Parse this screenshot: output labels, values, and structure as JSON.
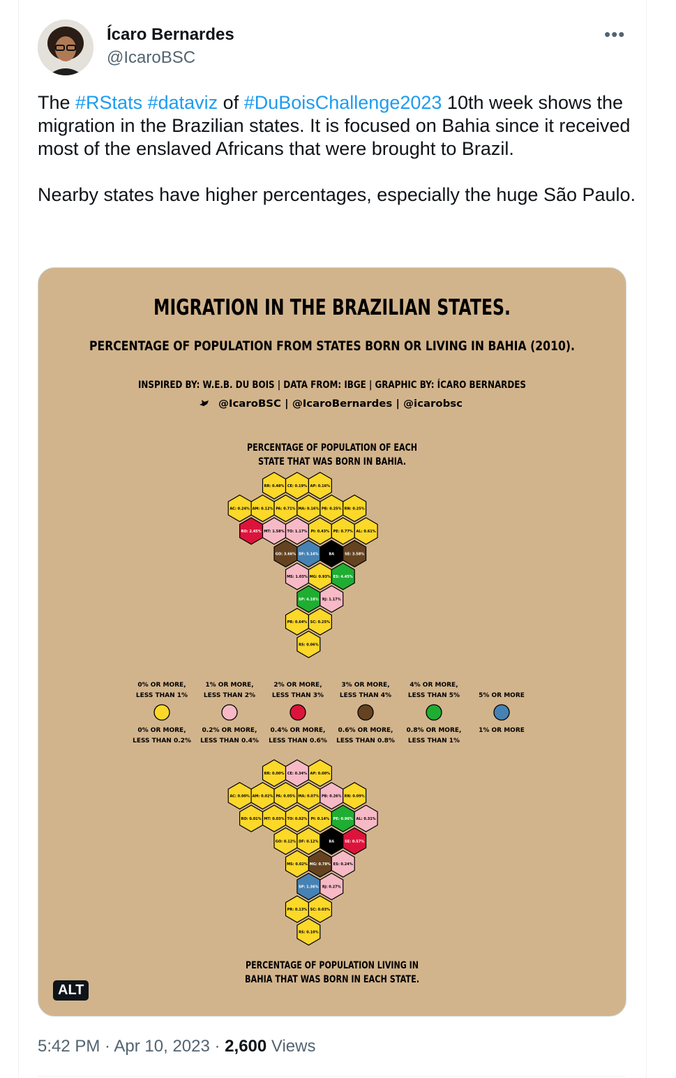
{
  "author": {
    "name": "Ícaro Bernardes",
    "handle": "@IcaroBSC"
  },
  "tweet": {
    "p1_a": "The ",
    "tag1": "#RStats",
    "tag2": "#dataviz",
    "p1_b": " of ",
    "tag3": "#DuBoisChallenge2023",
    "p1_c": " 10th week shows the migration in the Brazilian states. It is focused on Bahia since it received most of the enslaved Africans that were brought to Brazil.",
    "p2": "Nearby states have higher percentages, especially the huge São Paulo."
  },
  "infographic": {
    "title": "MIGRATION IN THE BRAZILIAN STATES.",
    "subtitle": "PERCENTAGE OF POPULATION FROM STATES BORN OR LIVING IN BAHIA (2010).",
    "credits": "INSPIRED BY: W.E.B. DU BOIS | DATA FROM: IBGE | GRAPHIC BY: ÍCARO BERNARDES",
    "social": "@IcaroBSC | @IcaroBernardes | @icarobsc",
    "map1_title_1": "PERCENTAGE OF POPULATION OF EACH",
    "map1_title_2": "STATE THAT WAS BORN IN BAHIA.",
    "map2_title_1": "PERCENTAGE OF POPULATION LIVING IN",
    "map2_title_2": "BAHIA THAT WAS BORN IN EACH STATE.",
    "alt_label": "ALT"
  },
  "colors": {
    "yellow": "#fcd829",
    "pink": "#f7b9c6",
    "red": "#dc143c",
    "brown": "#654321",
    "green": "#1fad32",
    "blue": "#4682b4",
    "black": "#000000"
  },
  "legend": [
    {
      "top_1": "0% OR MORE,",
      "top_2": "LESS THAN 1%",
      "color": "yellow",
      "bot_1": "0% OR MORE,",
      "bot_2": "LESS THAN 0.2%"
    },
    {
      "top_1": "1% OR MORE,",
      "top_2": "LESS THAN 2%",
      "color": "pink",
      "bot_1": "0.2% OR MORE,",
      "bot_2": "LESS THAN 0.4%"
    },
    {
      "top_1": "2% OR MORE,",
      "top_2": "LESS THAN 3%",
      "color": "red",
      "bot_1": "0.4% OR MORE,",
      "bot_2": "LESS THAN 0.6%"
    },
    {
      "top_1": "3% OR MORE,",
      "top_2": "LESS THAN 4%",
      "color": "brown",
      "bot_1": "0.6% OR MORE,",
      "bot_2": "LESS THAN 0.8%"
    },
    {
      "top_1": "4% OR MORE,",
      "top_2": "LESS THAN 5%",
      "color": "green",
      "bot_1": "0.8% OR MORE,",
      "bot_2": "LESS THAN 1%"
    },
    {
      "top_1": "",
      "top_2": "5% OR MORE",
      "color": "blue",
      "bot_1": "1% OR MORE",
      "bot_2": ""
    }
  ],
  "map1": [
    {
      "label": "RR: 0.48%",
      "color": "yellow"
    },
    {
      "label": "CE: 0.19%",
      "color": "yellow"
    },
    {
      "label": "AP: 0.16%",
      "color": "yellow"
    },
    {
      "label": "AC: 0.24%",
      "color": "yellow"
    },
    {
      "label": "AM: 0.12%",
      "color": "yellow"
    },
    {
      "label": "PA: 0.71%",
      "color": "yellow"
    },
    {
      "label": "MA: 0.16%",
      "color": "yellow"
    },
    {
      "label": "PB: 0.25%",
      "color": "yellow"
    },
    {
      "label": "RN: 0.25%",
      "color": "yellow"
    },
    {
      "label": "RO: 2.45%",
      "color": "red"
    },
    {
      "label": "MT: 1.58%",
      "color": "pink"
    },
    {
      "label": "TO: 1.17%",
      "color": "pink"
    },
    {
      "label": "PI: 0.43%",
      "color": "yellow"
    },
    {
      "label": "PE: 0.77%",
      "color": "yellow"
    },
    {
      "label": "AL: 0.61%",
      "color": "yellow"
    },
    {
      "label": "GO: 3.66%",
      "color": "brown"
    },
    {
      "label": "DF: 5.14%",
      "color": "blue"
    },
    {
      "label": "BA",
      "color": "black"
    },
    {
      "label": "SE: 3.58%",
      "color": "brown"
    },
    {
      "label": "MS: 1.03%",
      "color": "pink"
    },
    {
      "label": "MG: 0.93%",
      "color": "yellow"
    },
    {
      "label": "ES: 4.45%",
      "color": "green"
    },
    {
      "label": "SP: 4.18%",
      "color": "green"
    },
    {
      "label": "RJ: 1.17%",
      "color": "pink"
    },
    {
      "label": "PR: 0.64%",
      "color": "yellow"
    },
    {
      "label": "SC: 0.25%",
      "color": "yellow"
    },
    {
      "label": "RS: 0.06%",
      "color": "yellow"
    }
  ],
  "map2": [
    {
      "label": "RR: 0.00%",
      "color": "yellow"
    },
    {
      "label": "CE: 0.34%",
      "color": "pink"
    },
    {
      "label": "AP: 0.00%",
      "color": "yellow"
    },
    {
      "label": "AC: 0.00%",
      "color": "yellow"
    },
    {
      "label": "AM: 0.02%",
      "color": "yellow"
    },
    {
      "label": "PA: 0.05%",
      "color": "yellow"
    },
    {
      "label": "MA: 0.07%",
      "color": "yellow"
    },
    {
      "label": "PB: 0.26%",
      "color": "pink"
    },
    {
      "label": "RN: 0.09%",
      "color": "yellow"
    },
    {
      "label": "RO: 0.01%",
      "color": "yellow"
    },
    {
      "label": "MT: 0.03%",
      "color": "yellow"
    },
    {
      "label": "TO: 0.02%",
      "color": "yellow"
    },
    {
      "label": "PI: 0.14%",
      "color": "yellow"
    },
    {
      "label": "PE: 0.96%",
      "color": "green"
    },
    {
      "label": "AL: 0.31%",
      "color": "pink"
    },
    {
      "label": "GO: 0.12%",
      "color": "yellow"
    },
    {
      "label": "DF: 0.12%",
      "color": "yellow"
    },
    {
      "label": "BA",
      "color": "black"
    },
    {
      "label": "SE: 0.57%",
      "color": "red"
    },
    {
      "label": "MS: 0.02%",
      "color": "yellow"
    },
    {
      "label": "MG: 0.78%",
      "color": "brown"
    },
    {
      "label": "ES: 0.24%",
      "color": "pink"
    },
    {
      "label": "SP: 1.36%",
      "color": "blue"
    },
    {
      "label": "RJ: 0.27%",
      "color": "pink"
    },
    {
      "label": "PR: 0.13%",
      "color": "yellow"
    },
    {
      "label": "SC: 0.03%",
      "color": "yellow"
    },
    {
      "label": "RS: 0.10%",
      "color": "yellow"
    }
  ],
  "footer": {
    "time": "5:42 PM",
    "sep1": " · ",
    "date": "Apr 10, 2023",
    "sep2": " · ",
    "views_count": "2,600",
    "views_label": " Views"
  }
}
